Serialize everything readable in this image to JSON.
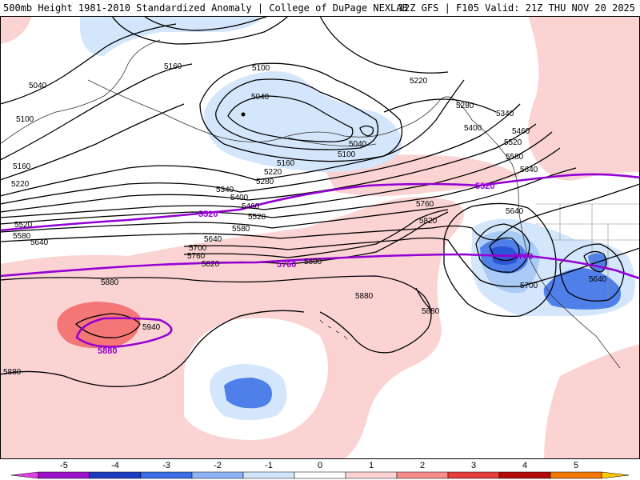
{
  "header": {
    "title_left": "500mb Height 1981-2010 Standardized Anomaly | College of DuPage NEXLAB",
    "title_right": "12Z GFS | F105 Valid: 21Z THU NOV 20 2025"
  },
  "contour_labels": [
    "5040",
    "5100",
    "5160",
    "5220",
    "5280",
    "5340",
    "5400",
    "5460",
    "5520",
    "5580",
    "5640",
    "5700",
    "5760",
    "5820",
    "5880",
    "5940"
  ],
  "labels": {
    "l5040a": "5040",
    "l5100a": "5100",
    "l5160a": "5160",
    "l5220a": "5220",
    "l5520a": "5520",
    "l5580a": "5580",
    "l5640a": "5640",
    "l5880a": "5880",
    "l5160b": "5160",
    "l5100b": "5100",
    "l5040b": "5040",
    "l5040c": "5040",
    "l5100c": "5100",
    "l5160c": "5160",
    "l5220b": "5220",
    "l5280a": "5280",
    "l5340a": "5340",
    "l5400a": "5400",
    "l5460a": "5460",
    "l5520b": "5520",
    "l5580b": "5580",
    "l5640b": "5640",
    "l5700a": "5700",
    "l5760a": "5760",
    "l5820a": "5820",
    "l5880b": "5880",
    "l5940a": "5940",
    "l5220c": "5220",
    "l5280b": "5280",
    "l5340b": "5340",
    "l5400b": "5400",
    "l5460b": "5460",
    "l5520c": "5520",
    "l5580c": "5580",
    "l5640c": "5640",
    "l5760b": "5760",
    "l5820b": "5820",
    "l5880c": "5880",
    "l5880d": "5880",
    "l5880e": "5880",
    "l5640d": "5640",
    "l5700b": "5700",
    "l5640e": "5640"
  },
  "highlighted_labels": {
    "h5520a": "5520",
    "h5520b": "5520",
    "h5760a": "5760",
    "h5760b": "5760",
    "h5880": "5880"
  },
  "colorbar": {
    "ticks": [
      "-5",
      "-4",
      "-3",
      "-2",
      "-1",
      "0",
      "1",
      "2",
      "3",
      "4",
      "5"
    ],
    "colors": [
      "#e040e0",
      "#9b10c8",
      "#1e3cc0",
      "#3c6ee6",
      "#8cb4f5",
      "#d2e6fa",
      "#ffffff",
      "#fcd2d2",
      "#f78c8c",
      "#e63c3c",
      "#b40a0a",
      "#f07800",
      "#ffc800"
    ]
  },
  "colors": {
    "pos_light": "#fbd3d3",
    "pos_mid": "#f47676",
    "neg_light": "#d4e6fb",
    "neg_mid": "#a9cbf6",
    "neg_strong": "#4f7fe8",
    "neg_deep": "#2b56d6",
    "highlight": "#9400d3"
  }
}
